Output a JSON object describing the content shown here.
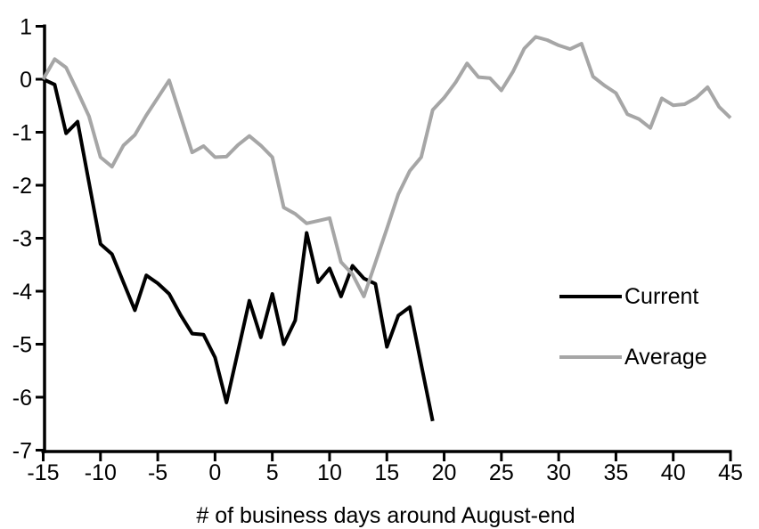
{
  "chart_data": {
    "type": "line",
    "title": "",
    "xlabel": "# of business days around August-end",
    "ylabel": "",
    "xlim": [
      -15,
      45
    ],
    "ylim": [
      -7,
      1
    ],
    "grid": false,
    "legend_position": "inside-right",
    "x_ticks": [
      -15,
      -10,
      -5,
      0,
      5,
      10,
      15,
      20,
      25,
      30,
      35,
      40,
      45
    ],
    "x_tick_labels": [
      "-15",
      "-10",
      "-5",
      "0",
      "5",
      "10",
      "15",
      "20",
      "25",
      "30",
      "35",
      "40",
      "45"
    ],
    "y_ticks": [
      1,
      0,
      -1,
      -2,
      -3,
      -4,
      -5,
      -6,
      -7
    ],
    "y_tick_labels": [
      "1",
      "0",
      "-1",
      "-2",
      "-3",
      "-4",
      "-5",
      "-6",
      "-7"
    ],
    "series": [
      {
        "name": "Current",
        "color": "#000000",
        "points": [
          [
            -15,
            0.0
          ],
          [
            -14,
            -0.1
          ],
          [
            -13,
            -1.02
          ],
          [
            -12,
            -0.8
          ],
          [
            -11,
            -1.95
          ],
          [
            -10,
            -3.11
          ],
          [
            -9,
            -3.3
          ],
          [
            -8,
            -3.83
          ],
          [
            -7,
            -4.36
          ],
          [
            -6,
            -3.7
          ],
          [
            -5,
            -3.85
          ],
          [
            -4,
            -4.05
          ],
          [
            -3,
            -4.45
          ],
          [
            -2,
            -4.8
          ],
          [
            -1,
            -4.82
          ],
          [
            0,
            -5.25
          ],
          [
            1,
            -6.1
          ],
          [
            2,
            -5.14
          ],
          [
            3,
            -4.18
          ],
          [
            4,
            -4.87
          ],
          [
            5,
            -4.05
          ],
          [
            6,
            -5.0
          ],
          [
            7,
            -4.55
          ],
          [
            8,
            -2.9
          ],
          [
            9,
            -3.83
          ],
          [
            10,
            -3.57
          ],
          [
            11,
            -4.1
          ],
          [
            12,
            -3.52
          ],
          [
            13,
            -3.76
          ],
          [
            14,
            -3.86
          ],
          [
            15,
            -5.05
          ],
          [
            16,
            -4.46
          ],
          [
            17,
            -4.3
          ],
          [
            18,
            -5.38
          ],
          [
            19,
            -6.45
          ]
        ]
      },
      {
        "name": "Average",
        "color": "#a6a6a6",
        "points": [
          [
            -15,
            0.0
          ],
          [
            -14,
            0.38
          ],
          [
            -13,
            0.22
          ],
          [
            -12,
            -0.23
          ],
          [
            -11,
            -0.7
          ],
          [
            -10,
            -1.47
          ],
          [
            -9,
            -1.65
          ],
          [
            -8,
            -1.25
          ],
          [
            -7,
            -1.05
          ],
          [
            -6,
            -0.68
          ],
          [
            -5,
            -0.35
          ],
          [
            -4,
            -0.02
          ],
          [
            -3,
            -0.7
          ],
          [
            -2,
            -1.38
          ],
          [
            -1,
            -1.26
          ],
          [
            0,
            -1.47
          ],
          [
            1,
            -1.46
          ],
          [
            2,
            -1.24
          ],
          [
            3,
            -1.07
          ],
          [
            4,
            -1.25
          ],
          [
            5,
            -1.47
          ],
          [
            6,
            -2.42
          ],
          [
            7,
            -2.54
          ],
          [
            8,
            -2.72
          ],
          [
            9,
            -2.67
          ],
          [
            10,
            -2.62
          ],
          [
            11,
            -3.45
          ],
          [
            12,
            -3.68
          ],
          [
            13,
            -4.1
          ],
          [
            14,
            -3.46
          ],
          [
            15,
            -2.82
          ],
          [
            16,
            -2.17
          ],
          [
            17,
            -1.73
          ],
          [
            18,
            -1.47
          ],
          [
            19,
            -0.58
          ],
          [
            20,
            -0.35
          ],
          [
            21,
            -0.06
          ],
          [
            22,
            0.3
          ],
          [
            23,
            0.04
          ],
          [
            24,
            0.02
          ],
          [
            25,
            -0.21
          ],
          [
            26,
            0.14
          ],
          [
            27,
            0.58
          ],
          [
            28,
            0.8
          ],
          [
            29,
            0.74
          ],
          [
            30,
            0.64
          ],
          [
            31,
            0.57
          ],
          [
            32,
            0.67
          ],
          [
            33,
            0.05
          ],
          [
            34,
            -0.12
          ],
          [
            35,
            -0.26
          ],
          [
            36,
            -0.66
          ],
          [
            37,
            -0.75
          ],
          [
            38,
            -0.92
          ],
          [
            39,
            -0.36
          ],
          [
            40,
            -0.49
          ],
          [
            41,
            -0.47
          ],
          [
            42,
            -0.35
          ],
          [
            43,
            -0.15
          ],
          [
            44,
            -0.52
          ],
          [
            45,
            -0.73
          ]
        ]
      }
    ]
  },
  "colors": {
    "axis": "#000000",
    "background": "#ffffff",
    "current_line": "#000000",
    "average_line": "#a6a6a6"
  }
}
